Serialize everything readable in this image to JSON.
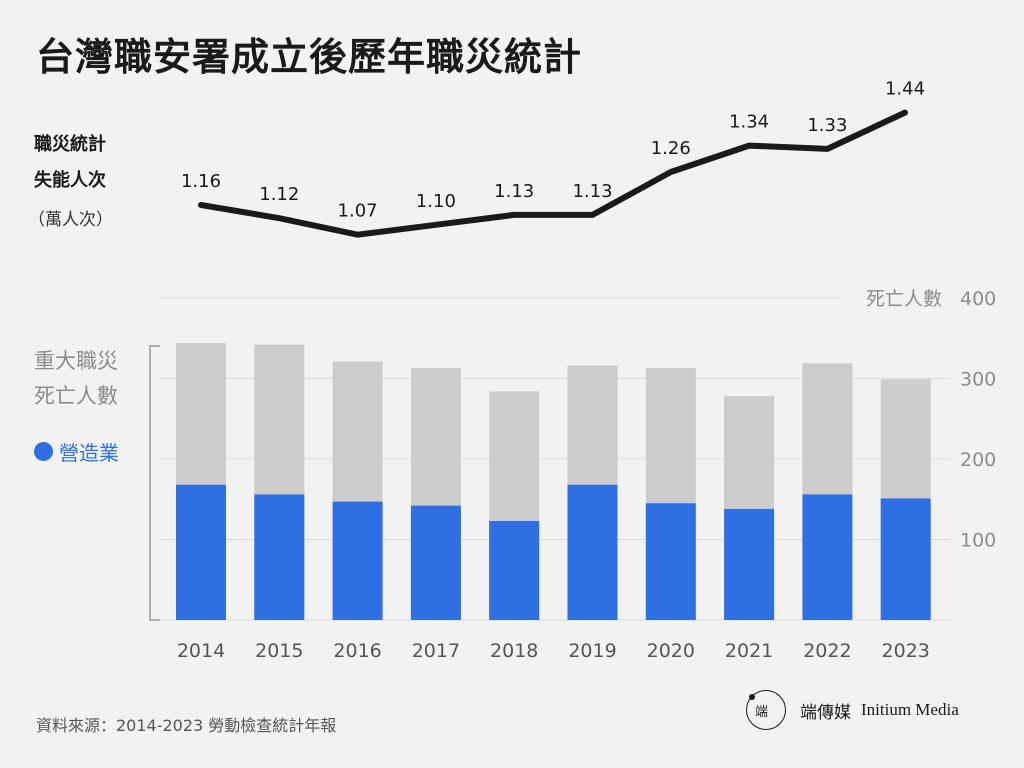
{
  "title": "台灣職安署成立後歷年職災統計",
  "line_axis": {
    "label_line1": "職災統計",
    "label_line2": "失能人次",
    "label_line3": "（萬人次）"
  },
  "bar_axis": {
    "label_line1": "重大職災",
    "label_line2": "死亡人數",
    "right_title": "死亡人數"
  },
  "legend": {
    "manufacturing": "營造業"
  },
  "source": "資料來源：2014-2023 勞動檢查統計年報",
  "brand": {
    "logo_mark": "端",
    "name": "端傳媒",
    "name_en": "Initium Media"
  },
  "colors": {
    "background": "#f2f2f2",
    "line": "#1a1a1a",
    "total_bar": "#cccccc",
    "construction_bar": "#2f6fe4",
    "grid": "#d9d9d9",
    "axis_text": "#8c8c8c"
  },
  "chart_data": [
    {
      "type": "line",
      "categories": [
        "2014",
        "2015",
        "2016",
        "2017",
        "2018",
        "2019",
        "2020",
        "2021",
        "2022",
        "2023"
      ],
      "series": [
        {
          "values": [
            1.16,
            1.12,
            1.07,
            1.1,
            1.13,
            1.13,
            1.26,
            1.34,
            1.33,
            1.44
          ]
        }
      ],
      "value_labels": [
        "1.16",
        "1.12",
        "1.07",
        "1.10",
        "1.13",
        "1.13",
        "1.26",
        "1.34",
        "1.33",
        "1.44"
      ]
    },
    {
      "type": "bar",
      "categories": [
        "2014",
        "2015",
        "2016",
        "2017",
        "2018",
        "2019",
        "2020",
        "2021",
        "2022",
        "2023"
      ],
      "series": [
        {
          "name": "重大職災死亡人數",
          "values": [
            344,
            342,
            321,
            313,
            284,
            316,
            313,
            278,
            319,
            299
          ]
        },
        {
          "name": "營造業",
          "values": [
            168,
            156,
            147,
            142,
            123,
            168,
            145,
            138,
            156,
            151
          ]
        }
      ],
      "ylim": [
        0,
        400
      ],
      "yticks": [
        100,
        200,
        300,
        400
      ]
    }
  ]
}
